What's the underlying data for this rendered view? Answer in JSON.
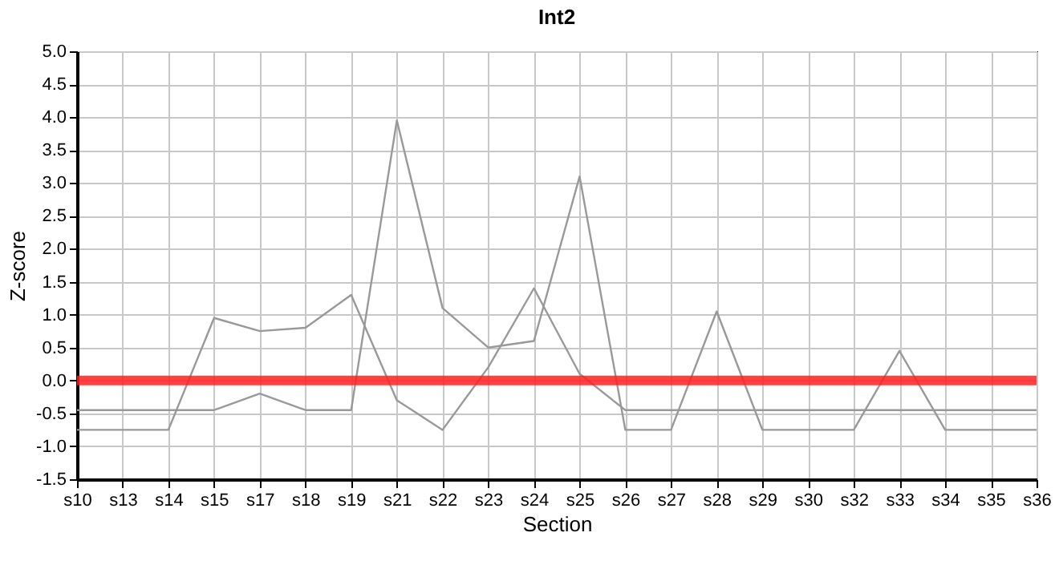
{
  "chart_data": {
    "type": "line",
    "title": "Int2",
    "xlabel": "Section",
    "ylabel": "Z-score",
    "categories": [
      "s10",
      "s13",
      "s14",
      "s15",
      "s17",
      "s18",
      "s19",
      "s21",
      "s22",
      "s23",
      "s24",
      "s25",
      "s26",
      "s27",
      "s28",
      "s29",
      "s30",
      "s32",
      "s33",
      "s34",
      "s35",
      "s36"
    ],
    "series": [
      {
        "color": "#999999",
        "values": [
          -0.45,
          -0.45,
          -0.45,
          -0.45,
          -0.2,
          -0.45,
          -0.45,
          3.95,
          1.1,
          0.5,
          0.6,
          3.1,
          -0.75,
          -0.75,
          1.05,
          -0.75,
          -0.75,
          -0.75,
          0.45,
          -0.75,
          -0.75,
          -0.75
        ]
      },
      {
        "color": "#999999",
        "values": [
          -0.75,
          -0.75,
          -0.75,
          0.95,
          0.75,
          0.8,
          1.3,
          -0.3,
          -0.75,
          0.2,
          1.4,
          0.1,
          -0.45,
          -0.45,
          -0.45,
          -0.45,
          -0.45,
          -0.45,
          -0.45,
          -0.45,
          -0.45,
          -0.45
        ]
      }
    ],
    "ylim": [
      -1.5,
      5.0
    ],
    "yticks": [
      {
        "value": -1.5,
        "label": "-1.5"
      },
      {
        "value": -1,
        "label": "-1.0"
      },
      {
        "value": -0.5,
        "label": "-0.5"
      },
      {
        "value": 0,
        "label": "0.0"
      },
      {
        "value": 0.5,
        "label": "0.5"
      },
      {
        "value": 1,
        "label": "1.0"
      },
      {
        "value": 1.5,
        "label": "1.5"
      },
      {
        "value": 2,
        "label": "2.0"
      },
      {
        "value": 2.5,
        "label": "2.5"
      },
      {
        "value": 3,
        "label": "3.0"
      },
      {
        "value": 3.5,
        "label": "3.5"
      },
      {
        "value": 4,
        "label": "4.0"
      },
      {
        "value": 4.5,
        "label": "4.5"
      },
      {
        "value": 5,
        "label": "5.0"
      }
    ],
    "ref_lines": [
      {
        "axis": "y",
        "value": 0,
        "color": "#ff2020"
      }
    ],
    "grid": true,
    "marker": "none",
    "line_style": "solid"
  }
}
